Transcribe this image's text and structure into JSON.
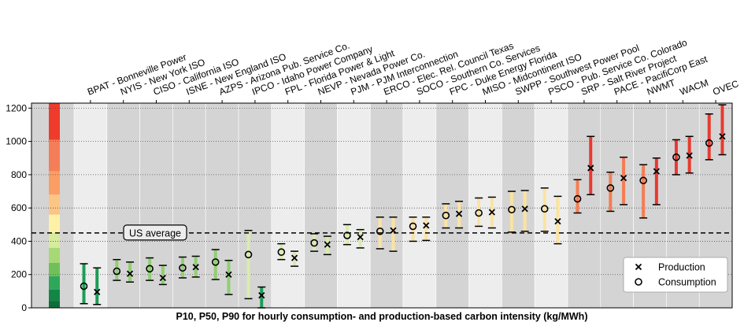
{
  "chart_data": {
    "type": "range",
    "xlabel": "P10, P50, P90 for hourly consumption- and production-based carbon intensity (kg/MWh)",
    "ylim": [
      0,
      1230
    ],
    "yticks": [
      0,
      200,
      400,
      600,
      800,
      1000,
      1200
    ],
    "grid": "horizontal dotted",
    "reference_line": {
      "label": "US average",
      "value": 450
    },
    "legend": {
      "position": "bottom-right",
      "items": [
        {
          "marker": "x",
          "label": "Production"
        },
        {
          "marker": "o",
          "label": "Consumption"
        }
      ]
    },
    "categories": [
      "BPAT - Bonneville Power",
      "NYIS - New York ISO",
      "CISO - California ISO",
      "ISNE - New England ISO",
      "AZPS - Arizona Pub. Service Co.",
      "IPCO - Idaho Power Company",
      "FPL - Florida Power & Light",
      "NEVP - Nevada Power Co.",
      "PJM - PJM Interconnection",
      "ERCO - Elec. Rel. Council Texas",
      "SOCO - Southern Co. Services",
      "FPC - Duke Energy Florida",
      "MISO - Midcontinent ISO",
      "SWPP - Southwest Power Pool",
      "PSCO - Pub. Service Co. Colorado",
      "SRP - Salt River Project",
      "PACE - PacifiCorp East",
      "NWMT",
      "WACM",
      "OVEC"
    ],
    "series": [
      {
        "name": "Consumption",
        "p10": [
          25,
          165,
          165,
          180,
          170,
          55,
          290,
          340,
          380,
          355,
          400,
          480,
          490,
          455,
          460,
          570,
          580,
          540,
          800,
          890
        ],
        "p50": [
          130,
          220,
          235,
          240,
          275,
          320,
          335,
          390,
          435,
          460,
          490,
          555,
          570,
          590,
          595,
          655,
          720,
          765,
          905,
          990
        ],
        "p90": [
          265,
          290,
          300,
          305,
          350,
          465,
          385,
          445,
          500,
          545,
          545,
          625,
          660,
          700,
          720,
          770,
          815,
          860,
          1010,
          1165
        ]
      },
      {
        "name": "Production",
        "p10": [
          20,
          155,
          140,
          185,
          80,
          0,
          250,
          320,
          360,
          340,
          405,
          480,
          480,
          460,
          385,
          680,
          620,
          620,
          810,
          920
        ],
        "p50": [
          95,
          205,
          180,
          245,
          200,
          75,
          300,
          380,
          425,
          465,
          495,
          565,
          575,
          595,
          520,
          840,
          780,
          820,
          915,
          1030
        ],
        "p90": [
          240,
          275,
          255,
          310,
          285,
          125,
          340,
          430,
          470,
          545,
          545,
          640,
          665,
          705,
          670,
          1030,
          905,
          900,
          1030,
          1220
        ]
      }
    ],
    "colorbar": {
      "colors": [
        "#e8312f",
        "#f37b4e",
        "#fdb96e",
        "#fff3a6",
        "#c8e68f",
        "#7ec76a",
        "#2ea55a",
        "#137e44"
      ]
    }
  }
}
